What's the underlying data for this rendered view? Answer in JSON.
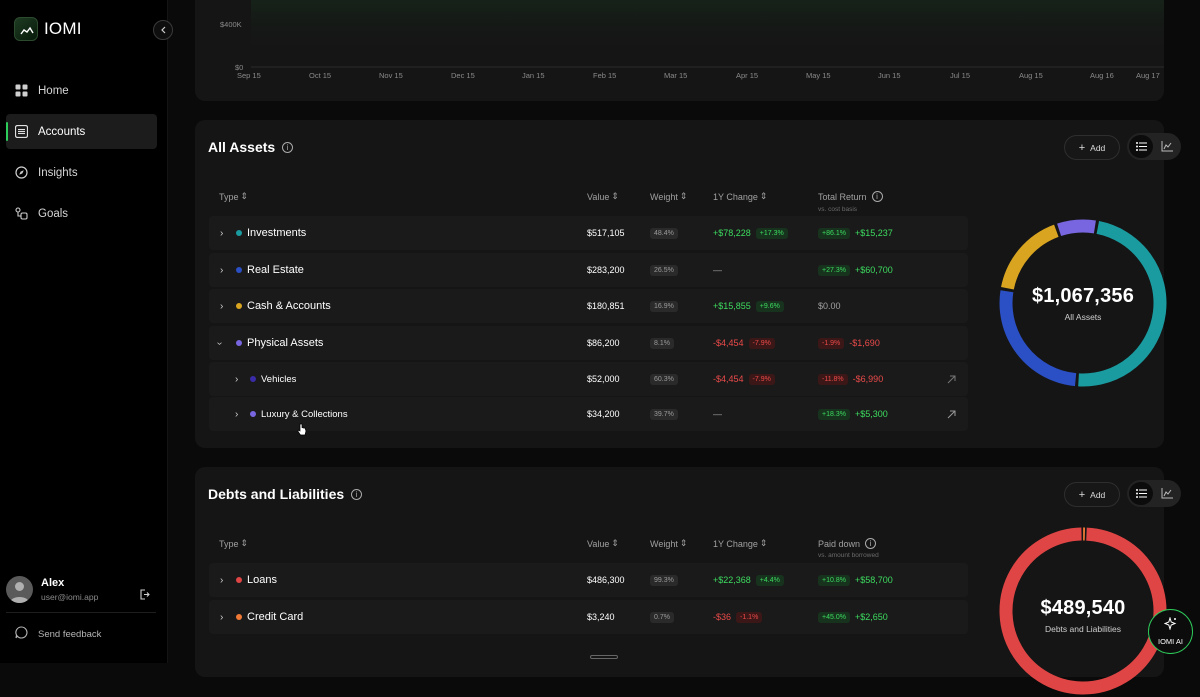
{
  "app": {
    "name": "IOMI"
  },
  "nav": {
    "items": [
      {
        "label": "Home",
        "icon": "grid-icon"
      },
      {
        "label": "Accounts",
        "icon": "list-icon"
      },
      {
        "label": "Insights",
        "icon": "compass-icon"
      },
      {
        "label": "Goals",
        "icon": "goals-icon"
      }
    ],
    "active": "Accounts"
  },
  "user": {
    "name": "Alex",
    "email": "user@iomi.app"
  },
  "feedback_label": "Send feedback",
  "net_chart": {
    "y_ticks": [
      "$400K",
      "$0"
    ],
    "x_ticks": [
      "Sep 15",
      "Oct 15",
      "Nov 15",
      "Dec 15",
      "Jan 15",
      "Feb 15",
      "Mar 15",
      "Apr 15",
      "May 15",
      "Jun 15",
      "Jul 15",
      "Aug 15",
      "Aug 16",
      "Aug 17"
    ]
  },
  "assets": {
    "title": "All Assets",
    "add_label": "Add",
    "columns": {
      "type": "Type",
      "value": "Value",
      "weight": "Weight",
      "change": "1Y Change",
      "return": "Total Return",
      "return_sub": "vs. cost basis"
    },
    "rows": [
      {
        "name": "Investments",
        "color": "#1a9ba0",
        "value": "$517,105",
        "weight": "48.4%",
        "change": "+$78,228",
        "change_pct": "+17.3%",
        "ret_pct": "+86.1%",
        "ret": "+$15,237",
        "change_trend": "up",
        "ret_trend": "up"
      },
      {
        "name": "Real Estate",
        "color": "#2b4fc4",
        "value": "$283,200",
        "weight": "26.5%",
        "change": "—",
        "change_pct": "",
        "ret_pct": "+27.3%",
        "ret": "+$60,700",
        "change_trend": "none",
        "ret_trend": "up"
      },
      {
        "name": "Cash & Accounts",
        "color": "#d9a521",
        "value": "$180,851",
        "weight": "16.9%",
        "change": "+$15,855",
        "change_pct": "+9.6%",
        "ret_pct": "",
        "ret": "$0.00",
        "change_trend": "up",
        "ret_trend": "none"
      },
      {
        "name": "Physical Assets",
        "color": "#7766e0",
        "value": "$86,200",
        "weight": "8.1%",
        "change": "-$4,454",
        "change_pct": "-7.9%",
        "ret_pct": "-1.9%",
        "ret": "-$1,690",
        "change_trend": "down",
        "ret_trend": "down"
      },
      {
        "name": "Vehicles",
        "color": "#3a2ca8",
        "value": "$52,000",
        "weight": "60.3%",
        "change": "-$4,454",
        "change_pct": "-7.9%",
        "ret_pct": "-11.8%",
        "ret": "-$6,990",
        "change_trend": "down",
        "ret_trend": "down"
      },
      {
        "name": "Luxury & Collections",
        "color": "#7766e0",
        "value": "$34,200",
        "weight": "39.7%",
        "change": "—",
        "change_pct": "",
        "ret_pct": "+18.3%",
        "ret": "+$5,300",
        "change_trend": "none",
        "ret_trend": "up"
      }
    ],
    "total": "$1,067,356",
    "total_label": "All Assets",
    "allocation": [
      {
        "name": "Investments",
        "weight": 48.4,
        "color": "#1a9ba0"
      },
      {
        "name": "Real Estate",
        "weight": 26.5,
        "color": "#2b4fc4"
      },
      {
        "name": "Cash & Accounts",
        "weight": 16.9,
        "color": "#d9a521"
      },
      {
        "name": "Physical Assets",
        "weight": 8.1,
        "color": "#7766e0"
      }
    ]
  },
  "debts": {
    "title": "Debts and Liabilities",
    "add_label": "Add",
    "columns": {
      "type": "Type",
      "value": "Value",
      "weight": "Weight",
      "change": "1Y Change",
      "paid": "Paid down",
      "paid_sub": "vs. amount borrowed"
    },
    "rows": [
      {
        "name": "Loans",
        "color": "#e04545",
        "value": "$486,300",
        "weight": "99.3%",
        "change": "+$22,368",
        "change_pct": "+4.4%",
        "ret_pct": "+10.8%",
        "ret": "+$58,700",
        "change_trend": "up",
        "ret_trend": "up"
      },
      {
        "name": "Credit Card",
        "color": "#f07a35",
        "value": "$3,240",
        "weight": "0.7%",
        "change": "-$36",
        "change_pct": "-1.1%",
        "ret_pct": "+45.0%",
        "ret": "+$2,650",
        "change_trend": "down",
        "ret_trend": "up"
      }
    ],
    "total": "$489,540",
    "total_label": "Debts and Liabilities",
    "allocation": [
      {
        "name": "Loans",
        "weight": 99.3,
        "color": "#e04545"
      },
      {
        "name": "Credit Card",
        "weight": 0.7,
        "color": "#f07a35"
      }
    ]
  },
  "ai": {
    "label": "IOMI AI"
  }
}
